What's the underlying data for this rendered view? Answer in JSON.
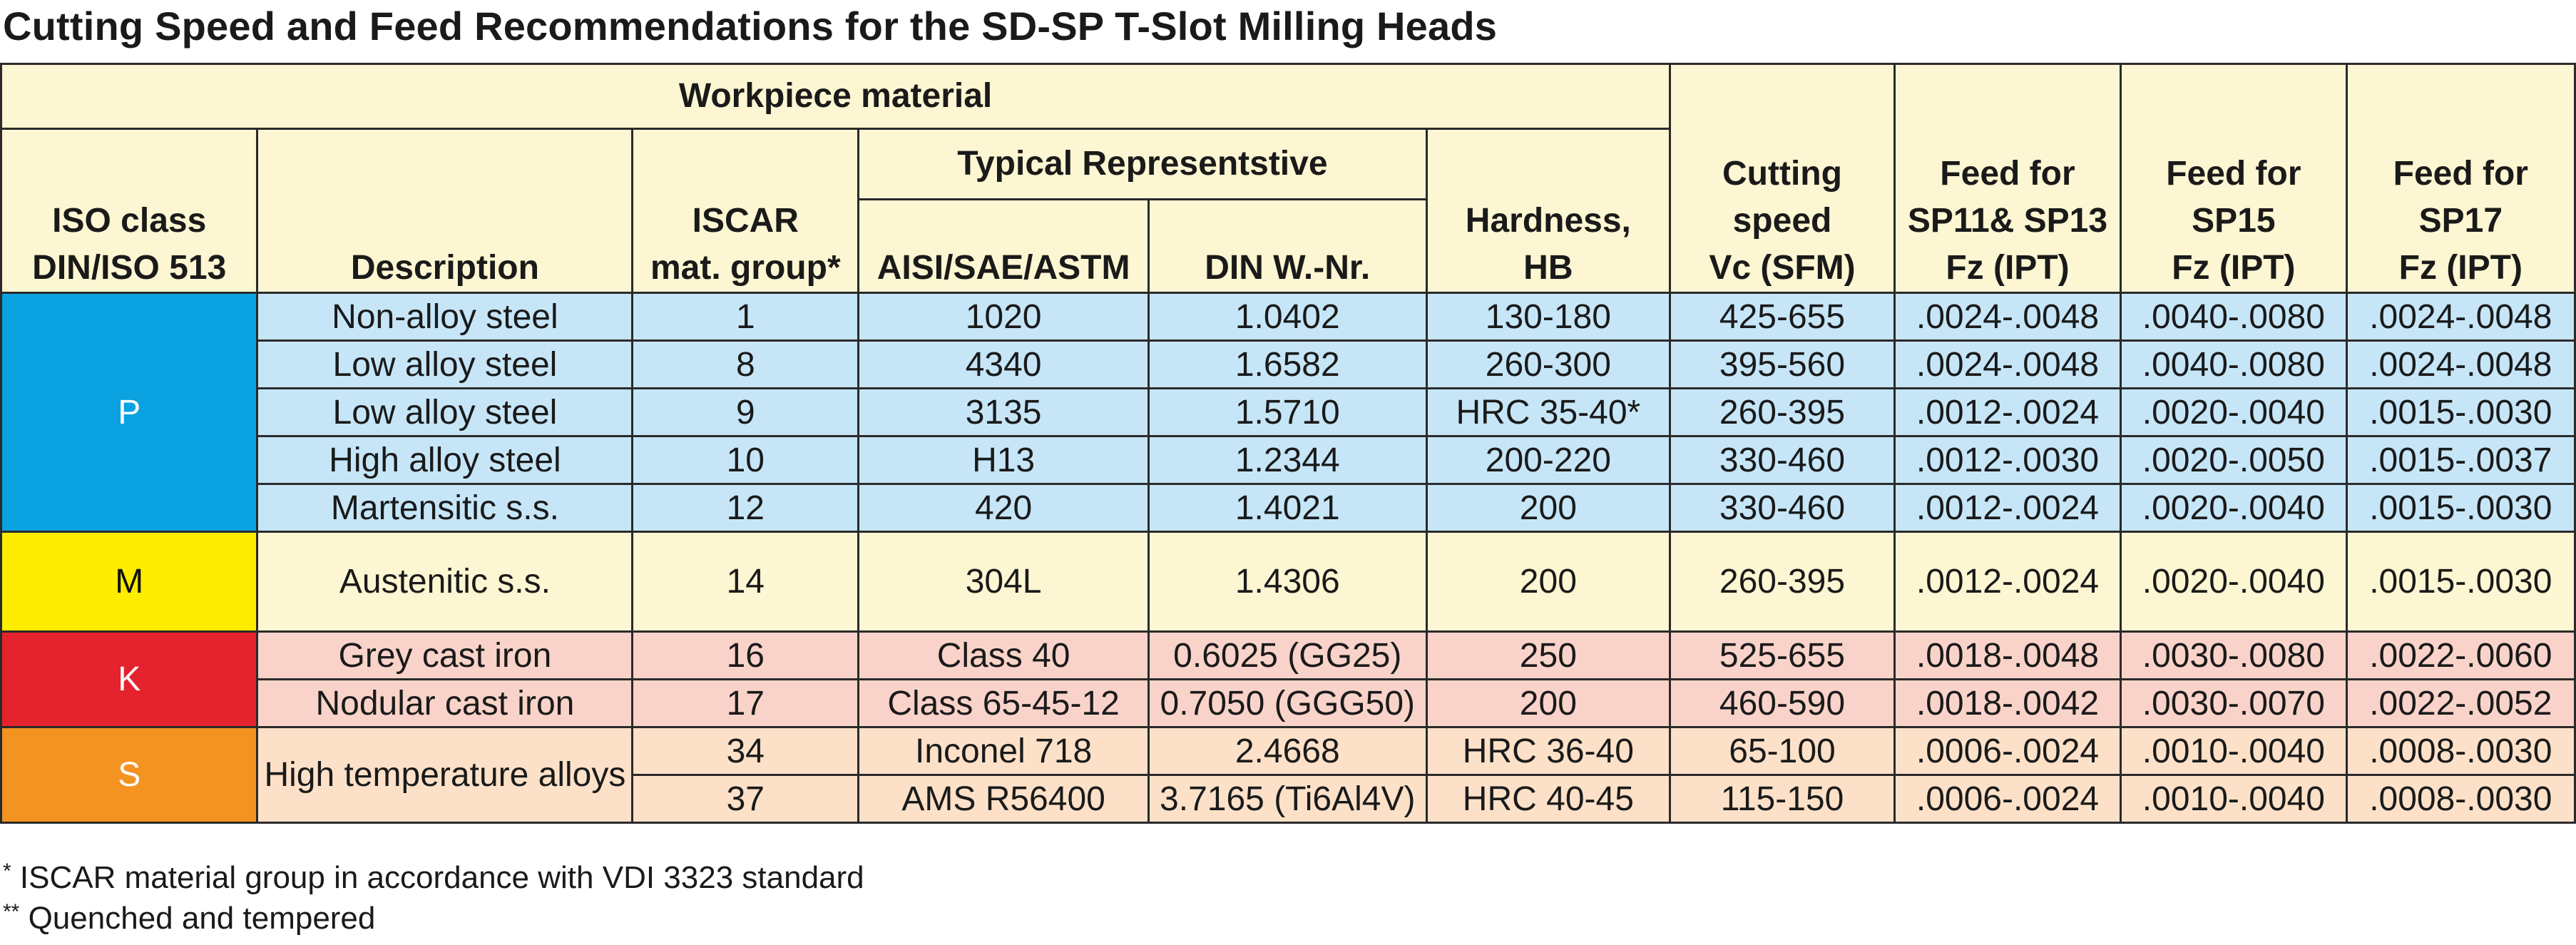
{
  "title": "Cutting Speed and Feed Recommendations for the SD-SP T-Slot Milling Heads",
  "headers": {
    "workpiece_material": "Workpiece material",
    "iso_class": [
      "ISO class",
      "DIN/ISO 513"
    ],
    "description": "Description",
    "iscar_group": [
      "ISCAR",
      "mat. group*"
    ],
    "typical_rep": "Typical Representstive",
    "aisi": "AISI/SAE/ASTM",
    "din": "DIN W.-Nr.",
    "hardness": [
      "Hardness,",
      "HB"
    ],
    "cutting_speed": [
      "Cutting",
      "speed",
      "Vc (SFM)"
    ],
    "feed_sp11_13": [
      "Feed for",
      "SP11& SP13",
      "Fz  (IPT)"
    ],
    "feed_sp15": [
      "Feed for",
      "SP15",
      "Fz (IPT)"
    ],
    "feed_sp17": [
      "Feed for",
      "SP17",
      "Fz (IPT)"
    ]
  },
  "iso_labels": {
    "p": "P",
    "m": "M",
    "k": "K",
    "s": "S"
  },
  "colors": {
    "P": "#0aa2e0",
    "M": "#ffed00",
    "K": "#e5232e",
    "S": "#f39321"
  },
  "rows": [
    {
      "iso": "P",
      "desc": "Non-alloy steel",
      "group": "1",
      "aisi": "1020",
      "din": "1.0402",
      "hardness": "130-180",
      "vc": "425-655",
      "fz1": ".0024-.0048",
      "fz2": ".0040-.0080",
      "fz3": ".0024-.0048"
    },
    {
      "iso": "P",
      "desc": "Low alloy steel",
      "group": "8",
      "aisi": "4340",
      "din": "1.6582",
      "hardness": "260-300",
      "vc": "395-560",
      "fz1": ".0024-.0048",
      "fz2": ".0040-.0080",
      "fz3": ".0024-.0048"
    },
    {
      "iso": "P",
      "desc": "Low alloy steel",
      "group": "9",
      "aisi": "3135",
      "din": "1.5710",
      "hardness": "HRC 35-40*",
      "vc": "260-395",
      "fz1": ".0012-.0024",
      "fz2": ".0020-.0040",
      "fz3": ".0015-.0030"
    },
    {
      "iso": "P",
      "desc": "High alloy steel",
      "group": "10",
      "aisi": "H13",
      "din": "1.2344",
      "hardness": "200-220",
      "vc": "330-460",
      "fz1": ".0012-.0030",
      "fz2": ".0020-.0050",
      "fz3": ".0015-.0037"
    },
    {
      "iso": "P",
      "desc": "Martensitic s.s.",
      "group": "12",
      "aisi": "420",
      "din": "1.4021",
      "hardness": "200",
      "vc": "330-460",
      "fz1": ".0012-.0024",
      "fz2": ".0020-.0040",
      "fz3": ".0015-.0030"
    },
    {
      "iso": "M",
      "desc": "Austenitic s.s.",
      "group": "14",
      "aisi": "304L",
      "din": "1.4306",
      "hardness": "200",
      "vc": "260-395",
      "fz1": ".0012-.0024",
      "fz2": ".0020-.0040",
      "fz3": ".0015-.0030"
    },
    {
      "iso": "K",
      "desc": "Grey cast iron",
      "group": "16",
      "aisi": "Class 40",
      "din": "0.6025 (GG25)",
      "hardness": "250",
      "vc": "525-655",
      "fz1": ".0018-.0048",
      "fz2": ".0030-.0080",
      "fz3": ".0022-.0060"
    },
    {
      "iso": "K",
      "desc": "Nodular cast iron",
      "group": "17",
      "aisi": "Class 65-45-12",
      "din": "0.7050 (GGG50)",
      "hardness": "200",
      "vc": "460-590",
      "fz1": ".0018-.0042",
      "fz2": ".0030-.0070",
      "fz3": ".0022-.0052"
    },
    {
      "iso": "S",
      "desc": "High temperature alloys",
      "group": "34",
      "aisi": "Inconel 718",
      "din": "2.4668",
      "hardness": "HRC 36-40",
      "vc": "65-100",
      "fz1": ".0006-.0024",
      "fz2": ".0010-.0040",
      "fz3": ".0008-.0030"
    },
    {
      "iso": "S",
      "desc": "High temperature alloys",
      "group": "37",
      "aisi": "AMS R56400",
      "din": "3.7165 (Ti6Al4V)",
      "hardness": "HRC 40-45",
      "vc": "115-150",
      "fz1": ".0006-.0024",
      "fz2": ".0010-.0040",
      "fz3": ".0008-.0030"
    }
  ],
  "footnotes": {
    "note1_mark": "*",
    "note1_text": " ISCAR material group in accordance with VDI 3323 standard",
    "note2_mark": "**",
    "note2_text": " Quenched and tempered"
  }
}
